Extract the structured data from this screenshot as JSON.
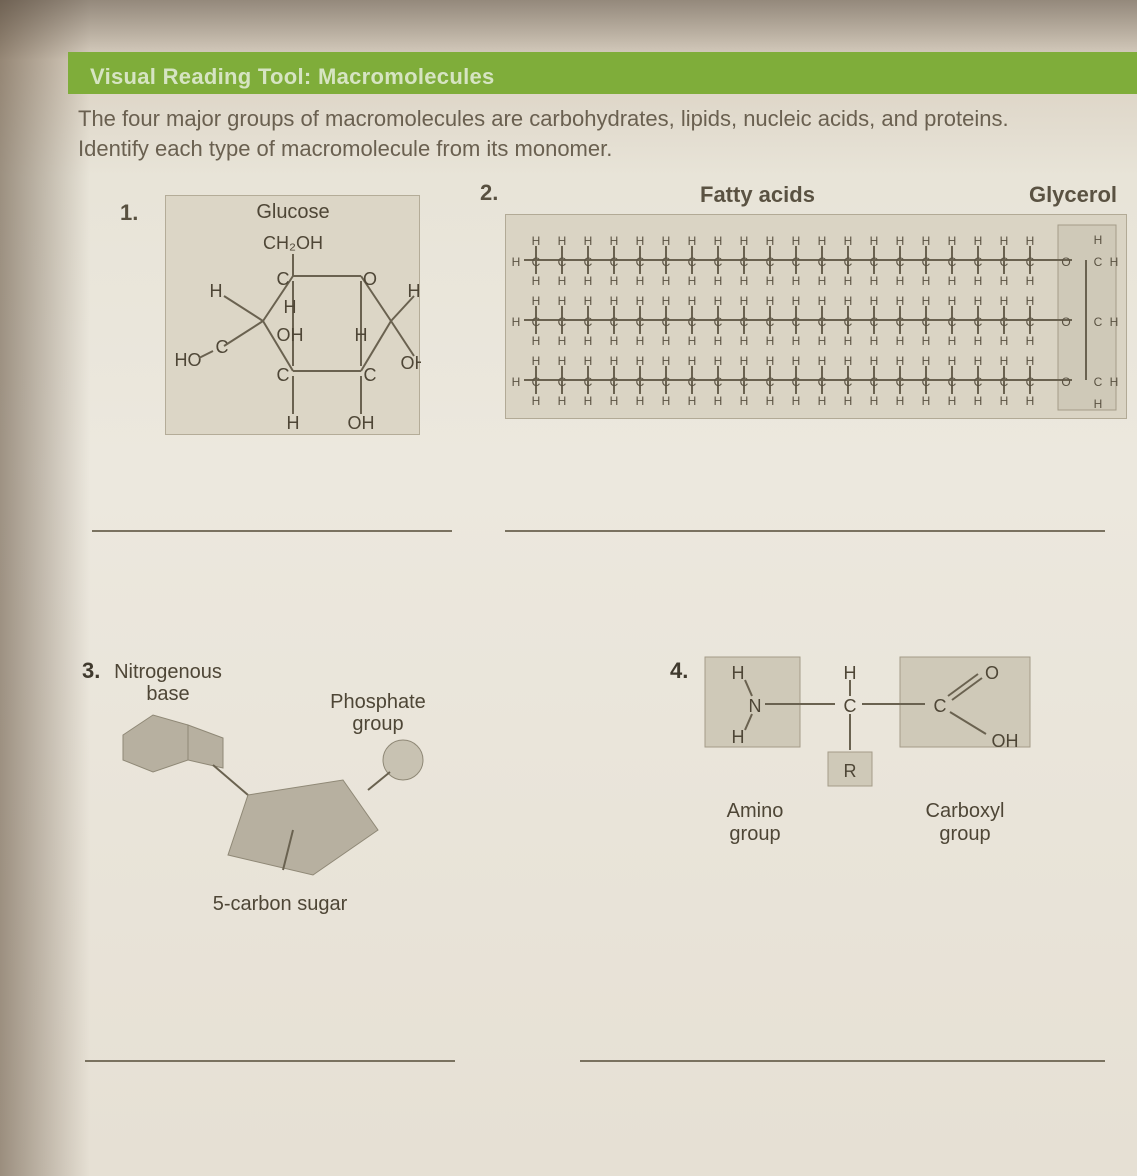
{
  "header_bar": "Visual Reading Tool: Macromolecules",
  "intro_line1": "The four major groups of macromolecules are carbohydrates, lipids, nucleic acids, and proteins.",
  "intro_line2": "Identify each type of macromolecule from its monomer.",
  "q1": {
    "num": "1.",
    "title": "Glucose",
    "formula": "CH₂OH",
    "atoms": {
      "H": "H",
      "C": "C",
      "OH": "OH",
      "HO": "HO",
      "O": "O"
    }
  },
  "q2": {
    "num": "2.",
    "left_title": "Fatty acids",
    "right_title": "Glycerol",
    "H": "H",
    "C": "C",
    "O": "O"
  },
  "q3": {
    "num": "3.",
    "label_nb1": "Nitrogenous",
    "label_nb2": "base",
    "label_ph1": "Phosphate",
    "label_ph2": "group",
    "label_sugar": "5-carbon sugar"
  },
  "q4": {
    "num": "4.",
    "H": "H",
    "N": "N",
    "C": "C",
    "O": "O",
    "OH": "OH",
    "R": "R",
    "amino1": "Amino",
    "amino2": "group",
    "carb1": "Carboxyl",
    "carb2": "group"
  },
  "colors": {
    "green": "#7fad3a",
    "box": "#dad4c4",
    "shape": "#b7b0a0",
    "shape_hl": "#c8c2b2",
    "line": "#7a7260"
  }
}
